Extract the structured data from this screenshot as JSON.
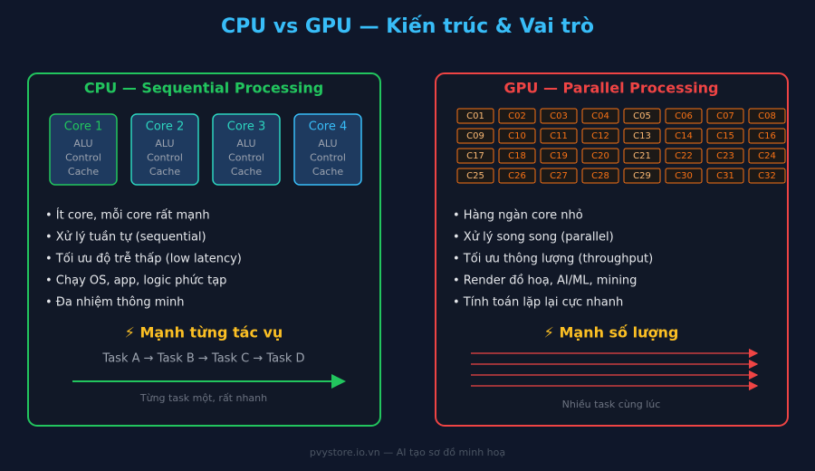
{
  "title": "CPU vs GPU — Kiến trúc & Vai trò",
  "cpu": {
    "title": "CPU — Sequential Processing",
    "cores": [
      {
        "name": "Core 1",
        "parts": [
          "ALU",
          "Control",
          "Cache"
        ]
      },
      {
        "name": "Core 2",
        "parts": [
          "ALU",
          "Control",
          "Cache"
        ]
      },
      {
        "name": "Core 3",
        "parts": [
          "ALU",
          "Control",
          "Cache"
        ]
      },
      {
        "name": "Core 4",
        "parts": [
          "ALU",
          "Control",
          "Cache"
        ]
      }
    ],
    "bullets": [
      "• Ít core, mỗi core rất mạnh",
      "• Xử lý tuần tự (sequential)",
      "• Tối ưu độ trễ thấp (low latency)",
      "• Chạy OS, app, logic phức tạp",
      "• Đa nhiệm thông minh"
    ],
    "strength": "⚡ Mạnh từng tác vụ",
    "tasks": "Task A → Task B → Task C → Task D",
    "caption": "Từng task một, rất nhanh"
  },
  "gpu": {
    "title": "GPU — Parallel Processing",
    "cores": [
      "C01",
      "C02",
      "C03",
      "C04",
      "C05",
      "C06",
      "C07",
      "C08",
      "C09",
      "C10",
      "C11",
      "C12",
      "C13",
      "C14",
      "C15",
      "C16",
      "C17",
      "C18",
      "C19",
      "C20",
      "C21",
      "C22",
      "C23",
      "C24",
      "C25",
      "C26",
      "C27",
      "C28",
      "C29",
      "C30",
      "C31",
      "C32"
    ],
    "bullets": [
      "• Hàng ngàn core nhỏ",
      "• Xử lý song song (parallel)",
      "• Tối ưu thông lượng (throughput)",
      "• Render đồ hoạ, AI/ML, mining",
      "• Tính toán lặp lại cực nhanh"
    ],
    "strength": "⚡ Mạnh số lượng",
    "caption": "Nhiều task cùng lúc"
  },
  "footer": "pvystore.io.vn — AI tạo sơ đồ minh hoạ"
}
